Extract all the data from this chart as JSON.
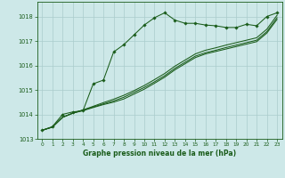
{
  "bg_color": "#cde8e8",
  "grid_color": "#aacccc",
  "line_color": "#1a5c1a",
  "xlabel": "Graphe pression niveau de la mer (hPa)",
  "ylim": [
    1013.0,
    1018.6
  ],
  "xlim": [
    -0.5,
    23.5
  ],
  "yticks": [
    1013,
    1014,
    1015,
    1016,
    1017,
    1018
  ],
  "xticks": [
    0,
    1,
    2,
    3,
    4,
    5,
    6,
    7,
    8,
    9,
    10,
    11,
    12,
    13,
    14,
    15,
    16,
    17,
    18,
    19,
    20,
    21,
    22,
    23
  ],
  "series1": [
    1013.35,
    1013.5,
    1014.0,
    1014.1,
    1014.15,
    1015.25,
    1015.4,
    1016.55,
    1016.85,
    1017.25,
    1017.65,
    1017.95,
    1018.15,
    1017.85,
    1017.72,
    1017.72,
    1017.65,
    1017.62,
    1017.55,
    1017.55,
    1017.68,
    1017.62,
    1018.0,
    1018.15
  ],
  "series2": [
    1013.35,
    1013.48,
    1013.88,
    1014.05,
    1014.18,
    1014.33,
    1014.48,
    1014.62,
    1014.78,
    1014.97,
    1015.18,
    1015.42,
    1015.67,
    1015.97,
    1016.22,
    1016.47,
    1016.62,
    1016.72,
    1016.83,
    1016.93,
    1017.03,
    1017.13,
    1017.48,
    1018.05
  ],
  "series3": [
    1013.35,
    1013.48,
    1013.88,
    1014.05,
    1014.18,
    1014.3,
    1014.43,
    1014.55,
    1014.7,
    1014.9,
    1015.1,
    1015.33,
    1015.58,
    1015.88,
    1016.13,
    1016.38,
    1016.52,
    1016.62,
    1016.73,
    1016.83,
    1016.93,
    1017.03,
    1017.38,
    1017.95
  ],
  "series4": [
    1013.35,
    1013.48,
    1013.88,
    1014.05,
    1014.15,
    1014.28,
    1014.4,
    1014.5,
    1014.63,
    1014.83,
    1015.03,
    1015.27,
    1015.52,
    1015.82,
    1016.07,
    1016.32,
    1016.47,
    1016.57,
    1016.67,
    1016.77,
    1016.87,
    1016.97,
    1017.32,
    1017.88
  ]
}
